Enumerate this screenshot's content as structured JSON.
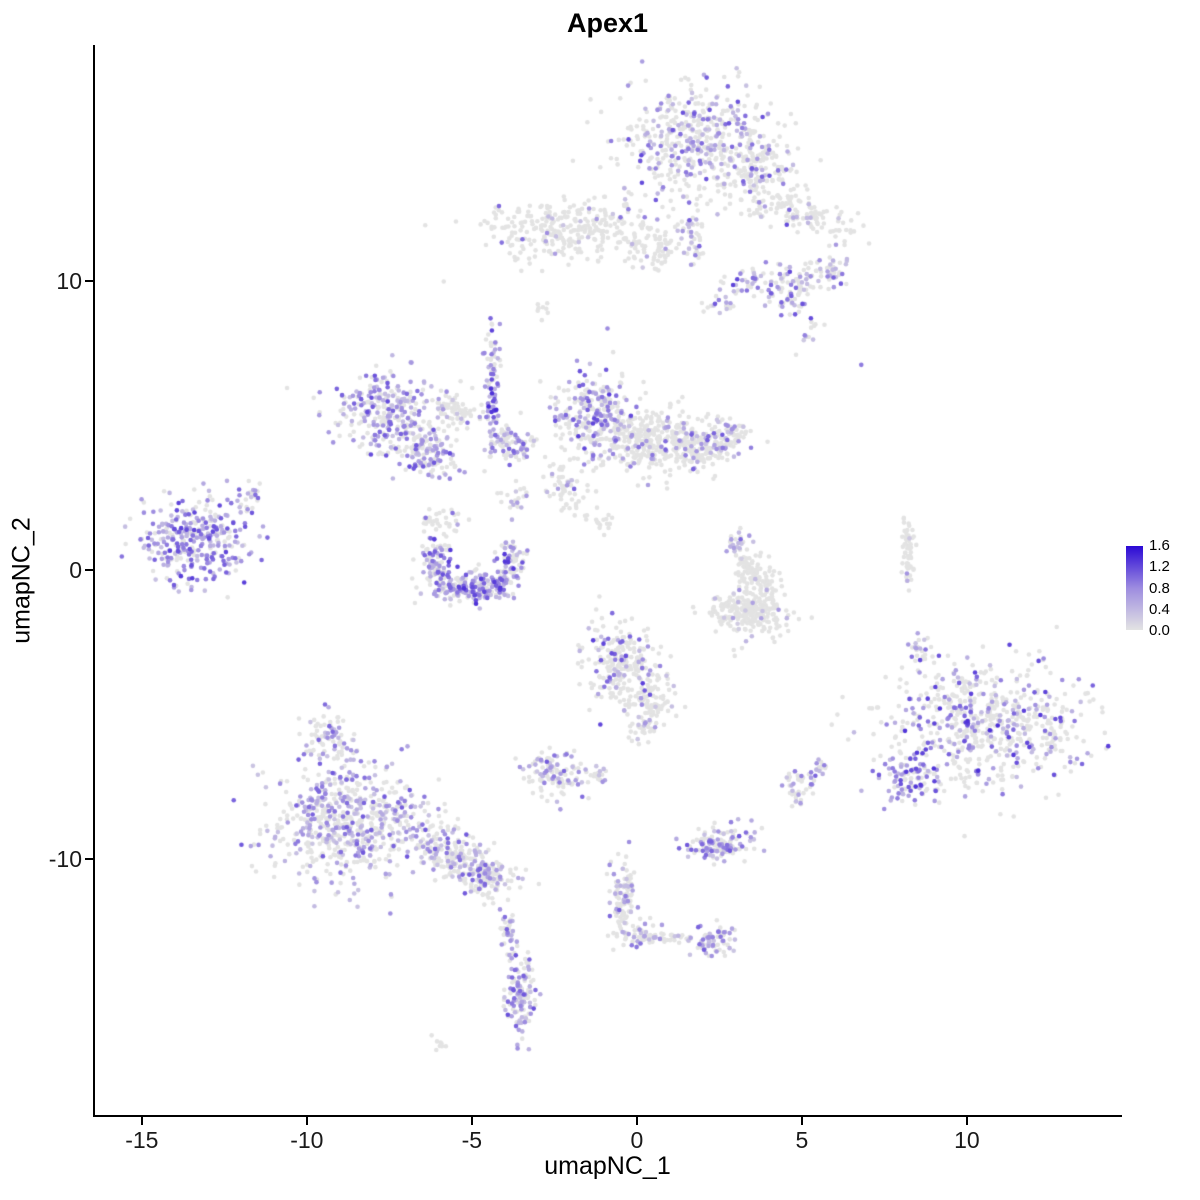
{
  "figure": {
    "title": "Apex1"
  },
  "axes": {
    "x_label": "umapNC_1",
    "y_label": "umapNC_2"
  },
  "legend": {
    "labels": [
      "1.6",
      "1.2",
      "0.8",
      "0.4",
      "0.0"
    ],
    "high": "#2B09D5",
    "mid": "#9D8CE0",
    "low": "#E3E3E3"
  },
  "chart_data": {
    "type": "scatter",
    "title": "Apex1",
    "xlabel": "umapNC_1",
    "ylabel": "umapNC_2",
    "xlim": [
      -16.42,
      14.64
    ],
    "ylim": [
      -18.86,
      18.17
    ],
    "x_ticks": [
      -15,
      -10,
      -5,
      0,
      5,
      10
    ],
    "y_ticks": [
      -10,
      0,
      10
    ],
    "grid": false,
    "legend_position": "right",
    "colorbar": {
      "min": 0.0,
      "max": 1.6,
      "label_values": [
        1.6,
        1.2,
        0.8,
        0.4,
        0.0
      ],
      "low_color": "#E3E3E3",
      "high_color": "#2B09D5"
    },
    "point_radius_px": 2.3,
    "clusters": [
      {
        "name": "top-main",
        "cx": 1.8,
        "cy": 14.9,
        "sx": 1.15,
        "sy": 1.0,
        "n": 480,
        "p": 0.32,
        "lvl": 0.75
      },
      {
        "name": "top-right-lobe",
        "cx": 3.6,
        "cy": 13.8,
        "sx": 0.6,
        "sy": 0.5,
        "n": 130,
        "p": 0.2,
        "lvl": 0.7
      },
      {
        "name": "top-arm",
        "cx": 4.9,
        "cy": 12.4,
        "sx": 1.0,
        "sy": 0.35,
        "n": 130,
        "p": 0.12,
        "lvl": 0.7,
        "rot": -25
      },
      {
        "name": "arm-purple-blob",
        "cx": 4.6,
        "cy": 9.7,
        "sx": 0.45,
        "sy": 0.5,
        "n": 90,
        "p": 0.45,
        "lvl": 0.8
      },
      {
        "name": "arm-side",
        "cx": 5.8,
        "cy": 10.4,
        "sx": 0.35,
        "sy": 0.3,
        "n": 50,
        "p": 0.3,
        "lvl": 0.7
      },
      {
        "name": "arm-tip",
        "cx": 5.2,
        "cy": 8.1,
        "sx": 0.2,
        "sy": 0.25,
        "n": 12,
        "p": 0.2,
        "lvl": 0.6
      },
      {
        "name": "band",
        "cx": -2.2,
        "cy": 11.8,
        "sx": 1.35,
        "sy": 0.5,
        "n": 300,
        "p": 0.06,
        "lvl": 0.7
      },
      {
        "name": "band-right",
        "cx": 0.5,
        "cy": 11.2,
        "sx": 0.5,
        "sy": 0.35,
        "n": 70,
        "p": 0.1,
        "lvl": 0.6
      },
      {
        "name": "band-vert",
        "cx": 1.7,
        "cy": 11.4,
        "sx": 0.15,
        "sy": 0.6,
        "n": 40,
        "p": 0.3,
        "lvl": 0.7
      },
      {
        "name": "purple-pair",
        "cx": 3.3,
        "cy": 10.0,
        "sx": 0.3,
        "sy": 0.2,
        "n": 30,
        "p": 0.55,
        "lvl": 0.8
      },
      {
        "name": "purple-pair2",
        "cx": 2.5,
        "cy": 9.3,
        "sx": 0.25,
        "sy": 0.2,
        "n": 20,
        "p": 0.4,
        "lvl": 0.7
      },
      {
        "name": "speck-1",
        "cx": -2.8,
        "cy": 9.0,
        "sx": 0.15,
        "sy": 0.1,
        "n": 6,
        "p": 0,
        "lvl": 0
      },
      {
        "name": "midleft-main",
        "cx": -7.6,
        "cy": 5.5,
        "sx": 0.75,
        "sy": 0.65,
        "n": 280,
        "p": 0.55,
        "lvl": 0.75
      },
      {
        "name": "midleft-tail",
        "cx": -6.3,
        "cy": 4.0,
        "sx": 0.6,
        "sy": 0.35,
        "n": 130,
        "p": 0.5,
        "lvl": 0.75,
        "rot": -30
      },
      {
        "name": "midleft-grey",
        "cx": -5.5,
        "cy": 5.6,
        "sx": 0.4,
        "sy": 0.35,
        "n": 70,
        "p": 0.1,
        "lvl": 0.6
      },
      {
        "name": "streak",
        "cx": -4.4,
        "cy": 6.2,
        "sx": 0.12,
        "sy": 1.1,
        "n": 90,
        "p": 0.5,
        "lvl": 0.9
      },
      {
        "name": "streak-below1",
        "cx": -4.0,
        "cy": 4.5,
        "sx": 0.3,
        "sy": 0.3,
        "n": 50,
        "p": 0.35,
        "lvl": 0.7
      },
      {
        "name": "streak-below2",
        "cx": -3.5,
        "cy": 4.2,
        "sx": 0.3,
        "sy": 0.25,
        "n": 40,
        "p": 0.45,
        "lvl": 0.7
      },
      {
        "name": "central-left",
        "cx": -1.3,
        "cy": 5.4,
        "sx": 0.6,
        "sy": 0.8,
        "n": 280,
        "p": 0.4,
        "lvl": 0.8
      },
      {
        "name": "central-right",
        "cx": 0.4,
        "cy": 4.5,
        "sx": 0.8,
        "sy": 0.6,
        "n": 300,
        "p": 0.12,
        "lvl": 0.7
      },
      {
        "name": "central-ext",
        "cx": 1.9,
        "cy": 4.2,
        "sx": 0.6,
        "sy": 0.4,
        "n": 150,
        "p": 0.15,
        "lvl": 0.7
      },
      {
        "name": "central-bump",
        "cx": 2.8,
        "cy": 4.7,
        "sx": 0.3,
        "sy": 0.3,
        "n": 60,
        "p": 0.2,
        "lvl": 0.7
      },
      {
        "name": "central-tail",
        "cx": -2.2,
        "cy": 2.8,
        "sx": 0.3,
        "sy": 0.5,
        "n": 60,
        "p": 0.2,
        "lvl": 0.7,
        "rot": 20
      },
      {
        "name": "central-speck",
        "cx": -1.1,
        "cy": 1.7,
        "sx": 0.2,
        "sy": 0.2,
        "n": 15,
        "p": 0.1,
        "lvl": 0.6
      },
      {
        "name": "farleft",
        "cx": -13.4,
        "cy": 1.0,
        "sx": 0.78,
        "sy": 0.72,
        "n": 330,
        "p": 0.7,
        "lvl": 0.8
      },
      {
        "name": "farleft-arm",
        "cx": -11.8,
        "cy": 2.6,
        "sx": 0.2,
        "sy": 0.3,
        "n": 25,
        "p": 0.4,
        "lvl": 0.7
      },
      {
        "name": "crescent",
        "shape": "arc",
        "cx": -4.95,
        "cy": 0.4,
        "r": 1.2,
        "a0": 150,
        "a1": 390,
        "jit": 0.22,
        "n": 280,
        "p": 0.55,
        "lvl": 0.85
      },
      {
        "name": "crescent-top",
        "cx": -6.0,
        "cy": 1.7,
        "sx": 0.3,
        "sy": 0.3,
        "n": 35,
        "p": 0.15,
        "lvl": 0.6
      },
      {
        "name": "crescent-fill",
        "cx": -5.1,
        "cy": -0.5,
        "sx": 0.7,
        "sy": 0.25,
        "n": 110,
        "p": 0.5,
        "lvl": 0.8
      },
      {
        "name": "crescent-tr",
        "cx": -3.8,
        "cy": 2.4,
        "sx": 0.25,
        "sy": 0.3,
        "n": 20,
        "p": 0.2,
        "lvl": 0.6
      },
      {
        "name": "c-cluster",
        "shape": "arc",
        "cx": 3.1,
        "cy": -0.7,
        "r": 0.85,
        "a0": -160,
        "a1": 100,
        "jit": 0.28,
        "n": 240,
        "p": 0.05,
        "lvl": 0.5
      },
      {
        "name": "c-top-purple",
        "cx": 3.1,
        "cy": 1.0,
        "sx": 0.2,
        "sy": 0.25,
        "n": 25,
        "p": 0.6,
        "lvl": 0.7
      },
      {
        "name": "c-lower",
        "cx": 3.7,
        "cy": -1.7,
        "sx": 0.5,
        "sy": 0.35,
        "n": 110,
        "p": 0.04,
        "lvl": 0.5
      },
      {
        "name": "right-streak",
        "cx": 8.2,
        "cy": 0.5,
        "sx": 0.1,
        "sy": 0.65,
        "n": 55,
        "p": 0.04,
        "lvl": 0.5
      },
      {
        "name": "midlower",
        "cx": -0.5,
        "cy": -3.3,
        "sx": 0.65,
        "sy": 0.75,
        "n": 240,
        "p": 0.3,
        "lvl": 0.8
      },
      {
        "name": "midlower-tail",
        "cx": 0.5,
        "cy": -4.5,
        "sx": 0.4,
        "sy": 0.4,
        "n": 80,
        "p": 0.15,
        "lvl": 0.7
      },
      {
        "name": "midlower-tip",
        "cx": 0.2,
        "cy": -5.4,
        "sx": 0.25,
        "sy": 0.25,
        "n": 30,
        "p": 0.2,
        "lvl": 0.7
      },
      {
        "name": "small-left",
        "cx": -2.5,
        "cy": -7.1,
        "sx": 0.5,
        "sy": 0.4,
        "n": 120,
        "p": 0.4,
        "lvl": 0.7
      },
      {
        "name": "small-left2",
        "cx": -1.1,
        "cy": -7.1,
        "sx": 0.15,
        "sy": 0.15,
        "n": 18,
        "p": 0.3,
        "lvl": 0.7
      },
      {
        "name": "bottomleft-core",
        "cx": -8.8,
        "cy": -8.7,
        "sx": 1.15,
        "sy": 1.0,
        "n": 620,
        "p": 0.45,
        "lvl": 0.7
      },
      {
        "name": "bottomleft-top",
        "cx": -9.3,
        "cy": -5.9,
        "sx": 0.45,
        "sy": 0.5,
        "n": 80,
        "p": 0.45,
        "lvl": 0.7
      },
      {
        "name": "bottomleft-arm",
        "cx": -5.5,
        "cy": -9.9,
        "sx": 0.9,
        "sy": 0.4,
        "n": 240,
        "p": 0.3,
        "lvl": 0.7,
        "rot": -35
      },
      {
        "name": "bottomleft-tip",
        "cx": -4.5,
        "cy": -10.7,
        "sx": 0.3,
        "sy": 0.3,
        "n": 70,
        "p": 0.35,
        "lvl": 0.7
      },
      {
        "name": "bottomleft-streak",
        "cx": -3.9,
        "cy": -12.5,
        "sx": 0.12,
        "sy": 0.4,
        "n": 35,
        "p": 0.45,
        "lvl": 0.7
      },
      {
        "name": "right-main",
        "cx": 10.5,
        "cy": -5.4,
        "sx": 1.5,
        "sy": 1.05,
        "n": 640,
        "p": 0.28,
        "lvl": 0.85
      },
      {
        "name": "right-purple",
        "cx": 8.3,
        "cy": -7.1,
        "sx": 0.4,
        "sy": 0.45,
        "n": 90,
        "p": 0.65,
        "lvl": 0.9
      },
      {
        "name": "right-top-small",
        "cx": 8.6,
        "cy": -2.9,
        "sx": 0.2,
        "sy": 0.3,
        "n": 25,
        "p": 0.3,
        "lvl": 0.7
      },
      {
        "name": "small-bottom-mid",
        "cx": 2.5,
        "cy": -9.5,
        "sx": 0.5,
        "sy": 0.3,
        "n": 130,
        "p": 0.55,
        "lvl": 0.7
      },
      {
        "name": "bits-1",
        "cx": 4.9,
        "cy": -7.4,
        "sx": 0.25,
        "sy": 0.35,
        "n": 45,
        "p": 0.3,
        "lvl": 0.7
      },
      {
        "name": "bits-2",
        "cx": 5.6,
        "cy": -6.9,
        "sx": 0.15,
        "sy": 0.15,
        "n": 15,
        "p": 0.3,
        "lvl": 0.7
      },
      {
        "name": "arm-lower",
        "cx": -0.4,
        "cy": -11.4,
        "sx": 0.18,
        "sy": 0.75,
        "n": 110,
        "p": 0.35,
        "lvl": 0.7
      },
      {
        "name": "arm-joint",
        "cx": 0.1,
        "cy": -12.6,
        "sx": 0.25,
        "sy": 0.25,
        "n": 35,
        "p": 0.3,
        "lvl": 0.7
      },
      {
        "name": "arm-diag",
        "cx": 1.0,
        "cy": -12.7,
        "sx": 0.55,
        "sy": 0.12,
        "n": 40,
        "p": 0.2,
        "lvl": 0.6,
        "rot": -5
      },
      {
        "name": "arm-blob",
        "cx": 2.3,
        "cy": -12.8,
        "sx": 0.3,
        "sy": 0.25,
        "n": 70,
        "p": 0.5,
        "lvl": 0.7
      },
      {
        "name": "bottom-dense",
        "cx": -3.5,
        "cy": -14.7,
        "sx": 0.22,
        "sy": 0.65,
        "n": 130,
        "p": 0.55,
        "lvl": 0.75
      },
      {
        "name": "bottom-speck",
        "cx": -6.0,
        "cy": -16.4,
        "sx": 0.15,
        "sy": 0.1,
        "n": 8,
        "p": 0,
        "lvl": 0
      },
      {
        "name": "bottom-speck2",
        "cx": -3.8,
        "cy": -13.3,
        "sx": 0.1,
        "sy": 0.1,
        "n": 6,
        "p": 0.3,
        "lvl": 0.6
      }
    ],
    "singles": [
      {
        "x": 6.8,
        "y": 7.1,
        "v": 0.9
      },
      {
        "x": -10.6,
        "y": 6.3,
        "v": 0
      },
      {
        "x": -3.0,
        "y": 9.2,
        "v": 0
      },
      {
        "x": -2.7,
        "y": 8.9,
        "v": 0
      }
    ]
  }
}
